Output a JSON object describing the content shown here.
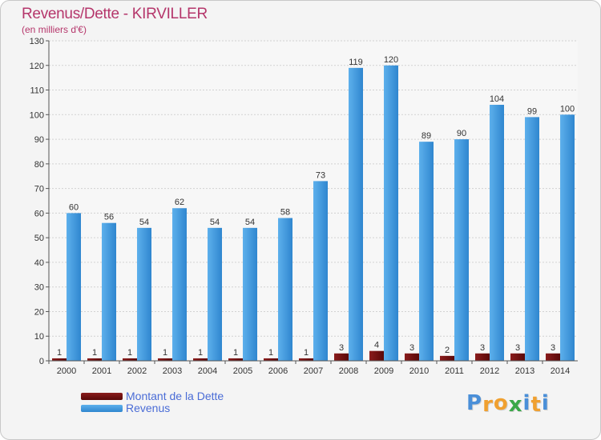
{
  "header": {
    "title": "Revenus/Dette - KIRVILLER",
    "subtitle": "(en milliers d'€)"
  },
  "colors": {
    "dette": "#6a0d0d",
    "revenus": "#3e97dc",
    "text_accent": "#b5366b",
    "legend_text": "#4a6cd6"
  },
  "chart_data": {
    "type": "bar",
    "title": "Revenus/Dette - KIRVILLER",
    "subtitle": "(en milliers d'€)",
    "categories": [
      "2000",
      "2001",
      "2002",
      "2003",
      "2004",
      "2005",
      "2006",
      "2007",
      "2008",
      "2009",
      "2010",
      "2011",
      "2012",
      "2013",
      "2014"
    ],
    "series": [
      {
        "name": "Montant de la Dette",
        "values": [
          1,
          1,
          1,
          1,
          1,
          1,
          1,
          1,
          3,
          4,
          3,
          2,
          3,
          3,
          3
        ]
      },
      {
        "name": "Revenus",
        "values": [
          60,
          56,
          54,
          62,
          54,
          54,
          58,
          73,
          119,
          120,
          89,
          90,
          104,
          99,
          100
        ]
      }
    ],
    "ylim": [
      0,
      130
    ],
    "yticks": [
      0,
      10,
      20,
      30,
      40,
      50,
      60,
      70,
      80,
      90,
      100,
      110,
      120,
      130
    ],
    "grid": true,
    "legend_position": "bottom-left"
  },
  "logo": {
    "letters": [
      "P",
      "r",
      "o",
      "x",
      "i",
      "t",
      "i"
    ],
    "colors": [
      "#4a8fd8",
      "#f0a030",
      "#f0a030",
      "#3aa848",
      "#4a8fd8",
      "#f0a030",
      "#4a8fd8"
    ]
  }
}
